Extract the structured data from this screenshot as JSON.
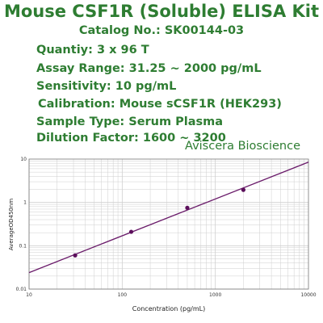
{
  "header": {
    "title": "Mouse CSF1R (Soluble) ELISA Kit",
    "catalog": "Catalog No.: SK00144-03",
    "quantity": "Quantiy: 3 x 96 T",
    "assay_range": "Assay Range: 31.25 ~ 2000 pg/mL",
    "sensitivity": "Sensitivity: 10 pg/mL",
    "calibration": "Calibration: Mouse sCSF1R (HEK293)",
    "sample_type": "Sample Type: Serum Plasma",
    "dilution": "Dilution Factor: 1600 ~ 3200",
    "brand": "Aviscera Bioscience"
  },
  "colors": {
    "title": "#2e7d32",
    "line": "#6a1b6a",
    "points": "#5b0f5b",
    "grid": "#cfcfcf"
  },
  "chart_data": {
    "type": "scatter",
    "x_scale": "log",
    "y_scale": "log",
    "xlim": [
      10,
      10000
    ],
    "ylim": [
      0.01,
      10
    ],
    "x_ticks": [
      "10",
      "100",
      "1000",
      "10000"
    ],
    "y_ticks": [
      "0.01",
      "0.1",
      "1",
      "10"
    ],
    "xlabel": "Concentration (pg/mL)",
    "ylabel": "AverageOD450nm",
    "grid": true,
    "points": [
      {
        "x": 31.25,
        "y": 0.06
      },
      {
        "x": 125,
        "y": 0.21
      },
      {
        "x": 500,
        "y": 0.75
      },
      {
        "x": 2000,
        "y": 1.95
      }
    ],
    "fit_line": [
      {
        "x": 10,
        "y": 0.024
      },
      {
        "x": 10000,
        "y": 8.5
      }
    ]
  }
}
